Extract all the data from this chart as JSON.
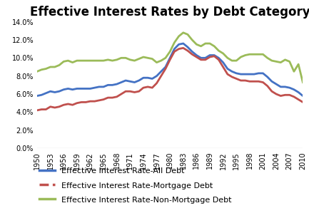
{
  "title": "Effective Interest Rates by Debt Category",
  "years": [
    1950,
    1951,
    1952,
    1953,
    1954,
    1955,
    1956,
    1957,
    1958,
    1959,
    1960,
    1961,
    1962,
    1963,
    1964,
    1965,
    1966,
    1967,
    1968,
    1969,
    1970,
    1971,
    1972,
    1973,
    1974,
    1975,
    1976,
    1977,
    1978,
    1979,
    1980,
    1981,
    1982,
    1983,
    1984,
    1985,
    1986,
    1987,
    1988,
    1989,
    1990,
    1991,
    1992,
    1993,
    1994,
    1995,
    1996,
    1997,
    1998,
    1999,
    2000,
    2001,
    2002,
    2003,
    2004,
    2005,
    2006,
    2007,
    2008,
    2009,
    2010
  ],
  "all_debt": [
    0.058,
    0.059,
    0.061,
    0.063,
    0.062,
    0.063,
    0.065,
    0.066,
    0.065,
    0.066,
    0.066,
    0.066,
    0.066,
    0.067,
    0.068,
    0.068,
    0.07,
    0.07,
    0.071,
    0.073,
    0.075,
    0.074,
    0.073,
    0.075,
    0.078,
    0.078,
    0.077,
    0.08,
    0.085,
    0.09,
    0.1,
    0.11,
    0.115,
    0.116,
    0.112,
    0.107,
    0.103,
    0.1,
    0.1,
    0.103,
    0.103,
    0.1,
    0.095,
    0.088,
    0.085,
    0.083,
    0.082,
    0.082,
    0.082,
    0.082,
    0.083,
    0.083,
    0.079,
    0.074,
    0.071,
    0.068,
    0.068,
    0.067,
    0.065,
    0.062,
    0.058
  ],
  "mortgage_debt": [
    0.042,
    0.043,
    0.043,
    0.046,
    0.045,
    0.046,
    0.048,
    0.049,
    0.048,
    0.05,
    0.051,
    0.051,
    0.052,
    0.052,
    0.053,
    0.054,
    0.056,
    0.056,
    0.057,
    0.06,
    0.063,
    0.063,
    0.062,
    0.063,
    0.067,
    0.068,
    0.067,
    0.072,
    0.08,
    0.088,
    0.098,
    0.107,
    0.11,
    0.111,
    0.108,
    0.104,
    0.101,
    0.098,
    0.098,
    0.101,
    0.102,
    0.098,
    0.09,
    0.082,
    0.079,
    0.077,
    0.075,
    0.075,
    0.074,
    0.074,
    0.074,
    0.073,
    0.069,
    0.063,
    0.06,
    0.058,
    0.059,
    0.059,
    0.057,
    0.054,
    0.051
  ],
  "non_mortgage_debt": [
    0.085,
    0.087,
    0.088,
    0.09,
    0.09,
    0.092,
    0.096,
    0.097,
    0.095,
    0.097,
    0.097,
    0.097,
    0.097,
    0.097,
    0.097,
    0.097,
    0.098,
    0.097,
    0.098,
    0.1,
    0.1,
    0.098,
    0.097,
    0.099,
    0.101,
    0.1,
    0.099,
    0.095,
    0.097,
    0.1,
    0.107,
    0.117,
    0.124,
    0.128,
    0.126,
    0.12,
    0.115,
    0.113,
    0.116,
    0.116,
    0.113,
    0.108,
    0.105,
    0.1,
    0.097,
    0.097,
    0.101,
    0.103,
    0.104,
    0.104,
    0.104,
    0.104,
    0.1,
    0.097,
    0.096,
    0.095,
    0.098,
    0.096,
    0.085,
    0.093,
    0.073
  ],
  "color_all": "#4472C4",
  "color_mortgage": "#C0504D",
  "color_non_mortgage": "#9BBB59",
  "xtick_years": [
    1950,
    1953,
    1956,
    1959,
    1962,
    1965,
    1968,
    1971,
    1974,
    1977,
    1980,
    1983,
    1986,
    1989,
    1992,
    1995,
    1998,
    2001,
    2004,
    2007,
    2010
  ],
  "ylim": [
    0.0,
    0.14
  ],
  "yticks": [
    0.0,
    0.02,
    0.04,
    0.06,
    0.08,
    0.1,
    0.12,
    0.14
  ],
  "legend_labels": [
    "Effective Interest Rate-All Debt",
    "Effective Interest Rate-Mortgage Debt",
    "Effective Interest Rate-Non-Mortgage Debt"
  ],
  "line_width": 2.0,
  "title_fontsize": 12,
  "legend_fontsize": 8,
  "tick_fontsize": 7,
  "background_color": "#FFFFFF"
}
